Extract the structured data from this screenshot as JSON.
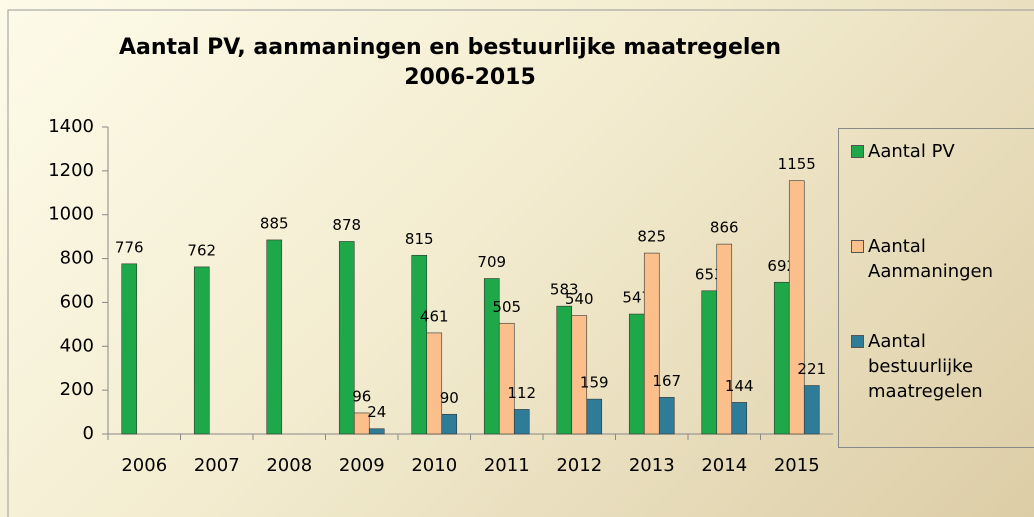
{
  "chart_data": {
    "type": "bar",
    "title": "Aantal PV, aanmaningen en bestuurlijke maatregelen 2006-2015",
    "categories": [
      "2006",
      "2007",
      "2008",
      "2009",
      "2010",
      "2011",
      "2012",
      "2013",
      "2014",
      "2015"
    ],
    "series": [
      {
        "name": "Aantal PV",
        "color": "#1fa84a",
        "values": [
          776,
          762,
          885,
          878,
          815,
          709,
          583,
          547,
          653,
          692
        ]
      },
      {
        "name": "Aantal Aanmaningen",
        "color": "#fbbf8c",
        "values": [
          null,
          null,
          null,
          96,
          461,
          505,
          540,
          825,
          866,
          1155
        ]
      },
      {
        "name": "Aantal bestuurlijke maatregelen",
        "color": "#2f7c98",
        "values": [
          null,
          null,
          null,
          24,
          90,
          112,
          159,
          167,
          144,
          221
        ]
      }
    ],
    "ylim": [
      0,
      1400
    ],
    "yticks": [
      0,
      200,
      400,
      600,
      800,
      1000,
      1200,
      1400
    ],
    "grid": false,
    "legend": "right"
  }
}
